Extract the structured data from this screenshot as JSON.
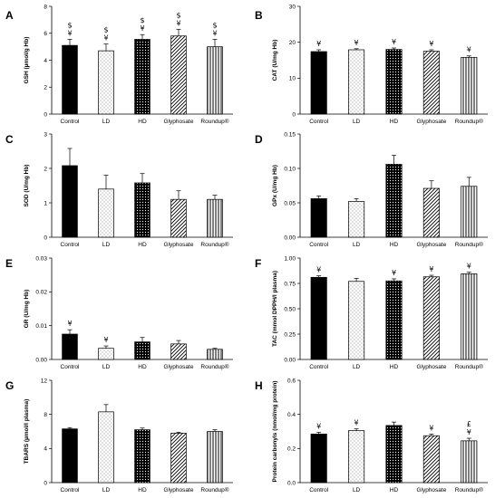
{
  "categories": [
    "Control",
    "LD",
    "HD",
    "Glyphosate",
    "Roundup®"
  ],
  "fills": [
    "black",
    "dots-sparse",
    "dots-dense",
    "diagonal",
    "vertical"
  ],
  "chart_data": [
    {
      "type": "bar",
      "panel": "A",
      "ylabel": "GSH (µmol/g Hb)",
      "ylim": [
        0,
        8
      ],
      "yticks": [
        "0",
        "2",
        "4",
        "6",
        "8"
      ],
      "values": [
        5.1,
        4.7,
        5.55,
        5.8,
        5.0
      ],
      "errors": [
        0.45,
        0.5,
        0.35,
        0.5,
        0.55
      ],
      "markers": [
        [
          "$",
          "¥"
        ],
        [
          "$",
          "¥"
        ],
        [
          "$",
          "¥"
        ],
        [
          "$",
          "¥"
        ],
        [
          "$",
          "¥"
        ]
      ]
    },
    {
      "type": "bar",
      "panel": "B",
      "ylabel": "CAT (U/mg Hb)",
      "ylim": [
        0,
        30
      ],
      "yticks": [
        "0",
        "10",
        "20",
        "30"
      ],
      "values": [
        17.4,
        17.9,
        18.0,
        17.5,
        15.8
      ],
      "errors": [
        0.5,
        0.3,
        0.4,
        0.4,
        0.4
      ],
      "markers": [
        [
          "¥"
        ],
        [
          "¥"
        ],
        [
          "¥"
        ],
        [
          "¥"
        ],
        [
          "¥"
        ]
      ]
    },
    {
      "type": "bar",
      "panel": "C",
      "ylabel": "SOD (U/mg Hb)",
      "ylim": [
        0,
        3
      ],
      "yticks": [
        "0",
        "1",
        "2",
        "3"
      ],
      "values": [
        2.08,
        1.4,
        1.58,
        1.1,
        1.1
      ],
      "errors": [
        0.5,
        0.4,
        0.27,
        0.25,
        0.12
      ],
      "markers": [
        [],
        [],
        [],
        [],
        []
      ]
    },
    {
      "type": "bar",
      "panel": "D",
      "ylabel": "GPx (U/mg Hb)",
      "ylim": [
        0,
        0.15
      ],
      "yticks": [
        "0.00",
        "0.05",
        "0.10",
        "0.15"
      ],
      "values": [
        0.056,
        0.052,
        0.106,
        0.071,
        0.074
      ],
      "errors": [
        0.004,
        0.004,
        0.013,
        0.011,
        0.013
      ],
      "markers": [
        [],
        [],
        [],
        [],
        []
      ]
    },
    {
      "type": "bar",
      "panel": "E",
      "ylabel": "GR (U/mg Hb)",
      "ylim": [
        0,
        0.03
      ],
      "yticks": [
        "0.00",
        "0.01",
        "0.02",
        "0.03"
      ],
      "values": [
        0.0075,
        0.0033,
        0.0052,
        0.0046,
        0.003
      ],
      "errors": [
        0.0013,
        0.0007,
        0.0013,
        0.001,
        0.0003
      ],
      "markers": [
        [
          "¥"
        ],
        [
          "¥"
        ],
        [],
        [],
        []
      ]
    },
    {
      "type": "bar",
      "panel": "F",
      "ylabel": "TAC (mmol DPPH/l plasma)",
      "ylim": [
        0,
        1
      ],
      "yticks": [
        "0.00",
        "0.25",
        "0.50",
        "0.75",
        "1.00"
      ],
      "values": [
        0.81,
        0.77,
        0.775,
        0.815,
        0.845
      ],
      "errors": [
        0.015,
        0.03,
        0.02,
        0.015,
        0.015
      ],
      "markers": [
        [
          "¥"
        ],
        [],
        [
          "¥"
        ],
        [
          "¥"
        ],
        [
          "¥"
        ]
      ]
    },
    {
      "type": "bar",
      "panel": "G",
      "ylabel": "TBARS (µmol/l plasma)",
      "ylim": [
        0,
        12
      ],
      "yticks": [
        "0",
        "4",
        "8",
        "12"
      ],
      "values": [
        6.3,
        8.3,
        6.2,
        5.8,
        6.0
      ],
      "errors": [
        0.15,
        0.85,
        0.2,
        0.1,
        0.2
      ],
      "markers": [
        [],
        [],
        [],
        [],
        []
      ]
    },
    {
      "type": "bar",
      "panel": "H",
      "ylabel": "Protein carbonyls (nmol/mg protein)",
      "ylim": [
        0,
        0.6
      ],
      "yticks": [
        "0.0",
        "0.2",
        "0.4",
        "0.6"
      ],
      "values": [
        0.285,
        0.305,
        0.335,
        0.275,
        0.245
      ],
      "errors": [
        0.01,
        0.01,
        0.02,
        0.01,
        0.015
      ],
      "markers": [
        [
          "¥"
        ],
        [
          "¥"
        ],
        [],
        [
          "¥"
        ],
        [
          "£",
          "¥"
        ]
      ]
    }
  ]
}
